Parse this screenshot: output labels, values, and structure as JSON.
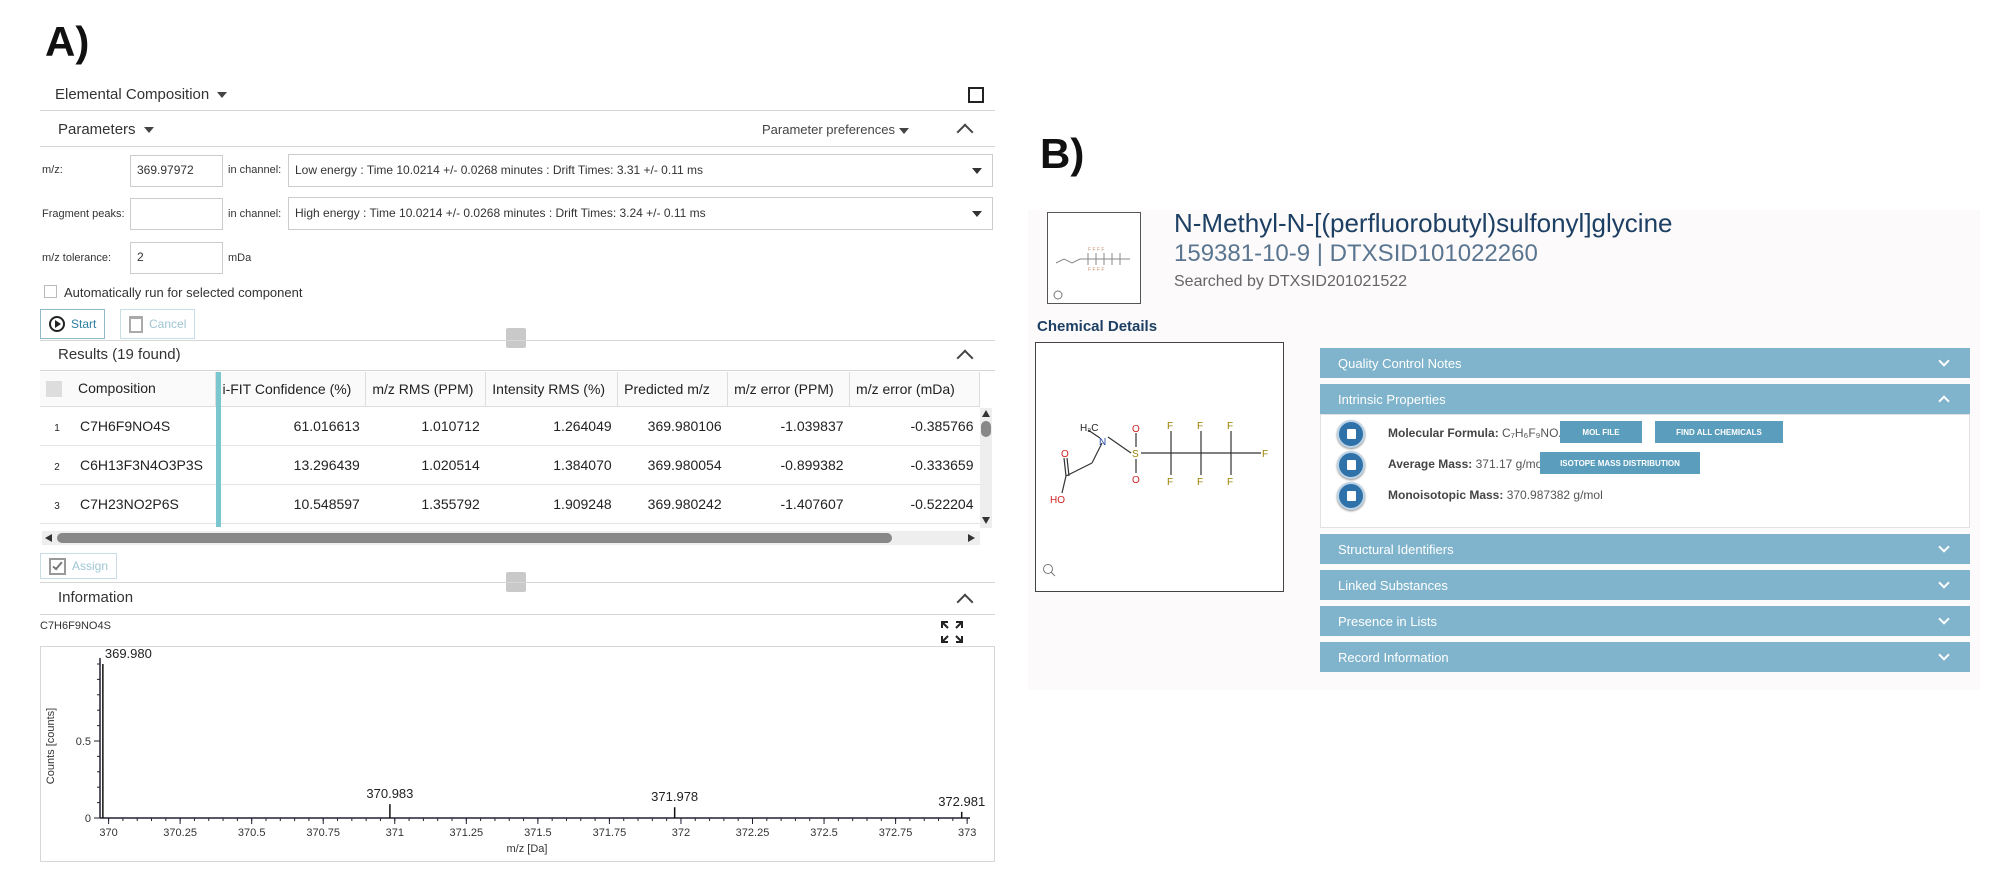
{
  "panel_a_label": "A)",
  "panel_b_label": "B)",
  "elemental": {
    "title": "Elemental Composition",
    "parameters_label": "Parameters",
    "parameter_preferences": "Parameter preferences",
    "mz_label": "m/z:",
    "mz_value": "369.97972",
    "in_channel_label": "in channel:",
    "low_channel": "Low energy : Time 10.0214 +/- 0.0268 minutes : Drift Times: 3.31 +/- 0.11 ms",
    "fragment_label": "Fragment peaks:",
    "fragment_value": "",
    "high_channel": "High energy : Time 10.0214 +/- 0.0268 minutes : Drift Times: 3.24 +/- 0.11 ms",
    "tolerance_label": "m/z tolerance:",
    "tolerance_value": "2",
    "tolerance_unit": "mDa",
    "auto_run_label": "Automatically run for selected component",
    "start_label": "Start",
    "cancel_label": "Cancel",
    "results_label": "Results (19 found)",
    "columns": [
      "Composition",
      "i-FIT Confidence (%)",
      "m/z RMS (PPM)",
      "Intensity RMS (%)",
      "Predicted m/z",
      "m/z error (PPM)",
      "m/z error (mDa)"
    ],
    "rows": [
      {
        "idx": "1",
        "composition": "C7H6F9NO4S",
        "ifit": "61.016613",
        "mz_rms": "1.010712",
        "int_rms": "1.264049",
        "predicted": "369.980106",
        "err_ppm": "-1.039837",
        "err_mda": "-0.385766"
      },
      {
        "idx": "2",
        "composition": "C6H13F3N4O3P3S",
        "ifit": "13.296439",
        "mz_rms": "1.020514",
        "int_rms": "1.384070",
        "predicted": "369.980054",
        "err_ppm": "-0.899382",
        "err_mda": "-0.333659"
      },
      {
        "idx": "3",
        "composition": "C7H23NO2P6S",
        "ifit": "10.548597",
        "mz_rms": "1.355792",
        "int_rms": "1.909248",
        "predicted": "369.980242",
        "err_ppm": "-1.407607",
        "err_mda": "-0.522204"
      }
    ],
    "assign_label": "Assign",
    "information_label": "Information",
    "info_formula": "C7H6F9NO4S"
  },
  "chart_data": {
    "type": "bar",
    "xlabel": "m/z [Da]",
    "ylabel": "Counts [counts]",
    "xlim": [
      369.97,
      373.01
    ],
    "ylim": [
      0,
      1
    ],
    "xticks": [
      "370",
      "370.25",
      "370.5",
      "370.75",
      "371",
      "371.25",
      "371.5",
      "371.75",
      "372",
      "372.25",
      "372.5",
      "372.75",
      "373"
    ],
    "yticks": [
      "0",
      "0.5"
    ],
    "peaks": [
      {
        "x": 369.98,
        "y": 1.0,
        "label": "369.980"
      },
      {
        "x": 370.983,
        "y": 0.09,
        "label": "370.983"
      },
      {
        "x": 371.978,
        "y": 0.07,
        "label": "371.978"
      },
      {
        "x": 372.981,
        "y": 0.04,
        "label": "372.981"
      }
    ]
  },
  "comptox": {
    "name": "N-Methyl-N-[(perfluorobutyl)sulfonyl]glycine",
    "ids": "159381-10-9 | DTXSID101022260",
    "searched": "Searched by DTXSID201021522",
    "details_label": "Chemical Details",
    "accordions": {
      "qc": "Quality Control Notes",
      "intrinsic": "Intrinsic Properties",
      "structural": "Structural Identifiers",
      "linked": "Linked Substances",
      "presence": "Presence in Lists",
      "record": "Record Information"
    },
    "formula_label": "Molecular Formula:",
    "formula_value": "C₇H₆F₉NO₄S",
    "avg_mass_label": "Average Mass:",
    "avg_mass_value": "371.17 g/mol",
    "mono_mass_label": "Monoisotopic Mass:",
    "mono_mass_value": "370.987382 g/mol",
    "mol_file_btn": "MOL FILE",
    "find_all_btn": "FIND ALL CHEMICALS",
    "isotope_btn": "ISOTOPE MASS DISTRIBUTION",
    "atoms": {
      "h3c": "H₃C",
      "n": "N",
      "s": "S",
      "o": "O",
      "ho": "HO",
      "f": "F"
    }
  }
}
